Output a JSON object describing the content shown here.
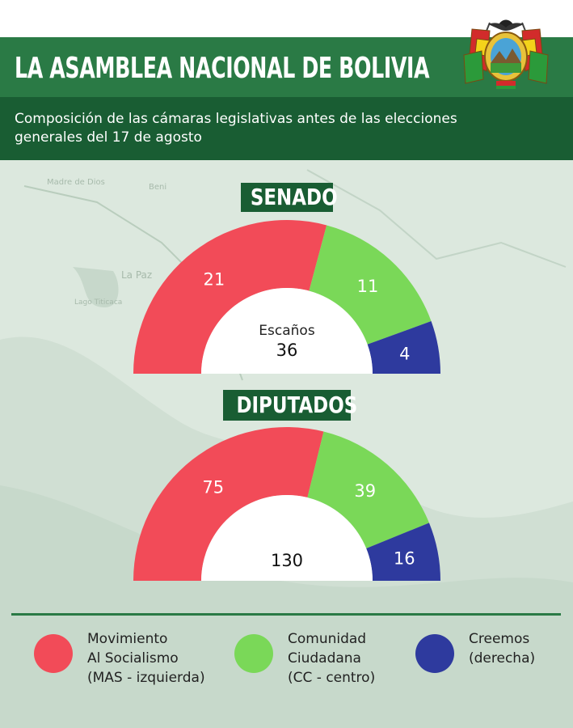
{
  "header": {
    "title": "LA ASAMBLEA NACIONAL DE BOLIVIA",
    "subtitle": "Composición de las cámaras legislativas antes de las elecciones generales del 17 de agosto"
  },
  "map_labels": [
    "Madre de Dios",
    "Beni",
    "La Paz",
    "Lago Titicaca"
  ],
  "colors": {
    "mas": "#f24b58",
    "cc": "#7ad858",
    "creemos": "#2e3a9e",
    "header_green": "#2a7a45",
    "dark_green": "#195d33"
  },
  "chart_data": [
    {
      "type": "pie",
      "title": "SENADO",
      "center_label": "Escaños",
      "total": 36,
      "categories": [
        "Movimiento Al Socialismo (MAS - izquierda)",
        "Comunidad Ciudadana (CC - centro)",
        "Creemos (derecha)"
      ],
      "values": [
        21,
        11,
        4
      ]
    },
    {
      "type": "pie",
      "title": "DIPUTADOS",
      "center_label": "",
      "total": 130,
      "categories": [
        "Movimiento Al Socialismo (MAS - izquierda)",
        "Comunidad Ciudadana (CC - centro)",
        "Creemos (derecha)"
      ],
      "values": [
        75,
        39,
        16
      ]
    }
  ],
  "legend": [
    {
      "label": "Movimiento\nAl Socialismo\n(MAS - izquierda)",
      "color": "#f24b58"
    },
    {
      "label": "Comunidad\nCiudadana\n(CC - centro)",
      "color": "#7ad858"
    },
    {
      "label": "Creemos\n(derecha)",
      "color": "#2e3a9e"
    }
  ]
}
